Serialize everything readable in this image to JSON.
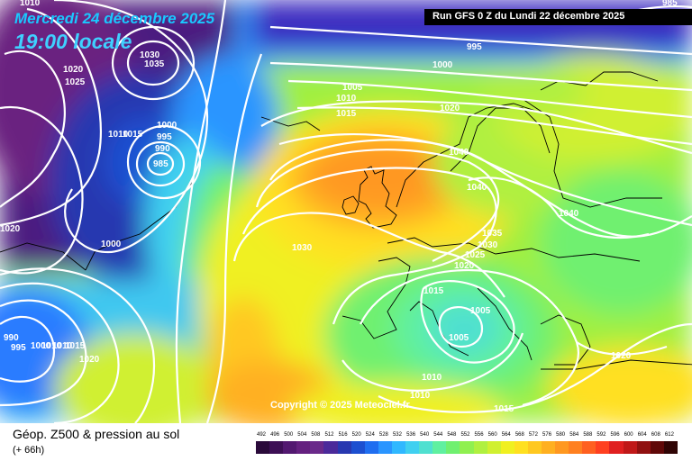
{
  "header": {
    "date_label": "Mercredi 24 décembre 2025",
    "time_label": "19:00 locale",
    "run_label": "Run GFS 0 Z du Lundi 22 décembre 2025",
    "copyright": "Copyright © 2025 Meteociel.fr"
  },
  "footer": {
    "field_title": "Géop. Z500 & pression au sol",
    "forecast_step": "(+ 66h)"
  },
  "legend": {
    "ticks": [
      "492",
      "496",
      "500",
      "504",
      "508",
      "512",
      "516",
      "520",
      "524",
      "528",
      "532",
      "536",
      "540",
      "544",
      "548",
      "552",
      "556",
      "560",
      "564",
      "568",
      "572",
      "576",
      "580",
      "584",
      "588",
      "592",
      "596",
      "600",
      "604",
      "608",
      "612"
    ],
    "colors": [
      "#2a0a3a",
      "#3d0f55",
      "#521870",
      "#64207f",
      "#6a2a8a",
      "#4b2a9a",
      "#2838b0",
      "#1c4fd0",
      "#1f6ef0",
      "#2a95ff",
      "#30b8ff",
      "#40d0f0",
      "#50e0d0",
      "#60f0a0",
      "#70f070",
      "#90f050",
      "#b0f040",
      "#d0f030",
      "#f0f020",
      "#ffe020",
      "#ffc820",
      "#ffb020",
      "#ff9820",
      "#ff8020",
      "#ff6020",
      "#ff4020",
      "#e02020",
      "#c01818",
      "#901010",
      "#600808",
      "#300404"
    ]
  },
  "isobars": [
    "1010",
    "1030",
    "1035",
    "1020",
    "1025",
    "1010",
    "1015",
    "1000",
    "995",
    "990",
    "985",
    "1020",
    "1000",
    "995",
    "1000",
    "1005",
    "1010",
    "1015",
    "1020",
    "1040",
    "1040",
    "1040",
    "1035",
    "1030",
    "1025",
    "1020",
    "1030",
    "1015",
    "1005",
    "1005",
    "1010",
    "1010",
    "1015",
    "990",
    "995",
    "1000",
    "1010",
    "1010",
    "1015",
    "1020",
    "1020",
    "985"
  ],
  "colors": {
    "run_bar": "#000000",
    "date_text": "#1ac8ff",
    "isobar": "#ffffff"
  }
}
